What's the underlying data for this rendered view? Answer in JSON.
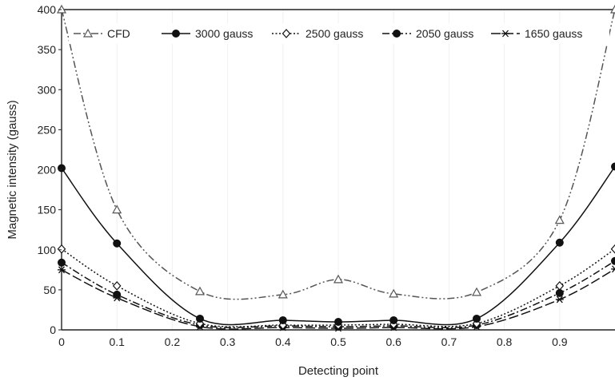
{
  "chart_data": {
    "type": "line",
    "xlabel": "Detecting point",
    "ylabel": "Magnetic intensity (gauss)",
    "xlim": [
      0,
      1
    ],
    "ylim": [
      0,
      400
    ],
    "xticks": [
      0,
      0.1,
      0.2,
      0.3,
      0.4,
      0.5,
      0.6,
      0.7,
      0.8,
      0.9
    ],
    "xtick_labels": [
      "0",
      "0.1",
      "0.2",
      "0.3",
      "0.4",
      "0.5",
      "0.6",
      "0.7",
      "0.8",
      "0.9"
    ],
    "yticks": [
      0,
      50,
      100,
      150,
      200,
      250,
      300,
      350,
      400
    ],
    "ytick_labels": [
      "0",
      "50",
      "100",
      "150",
      "200",
      "250",
      "300",
      "350",
      "400"
    ],
    "grid": "vertical light",
    "legend_position": "top",
    "series": [
      {
        "name": "CFD",
        "marker": "open-triangle",
        "line_style": "dash-dot-dot",
        "color": "#555555",
        "x": [
          0,
          0.1,
          0.25,
          0.4,
          0.5,
          0.6,
          0.75,
          0.9,
          1.0
        ],
        "y": [
          400,
          150,
          48,
          44,
          63,
          45,
          47,
          137,
          400
        ]
      },
      {
        "name": "3000 gauss",
        "marker": "filled-circle",
        "line_style": "solid",
        "color": "#111111",
        "x": [
          0,
          0.1,
          0.25,
          0.4,
          0.5,
          0.6,
          0.75,
          0.9,
          1.0
        ],
        "y": [
          202,
          108,
          14,
          12,
          10,
          12,
          14,
          109,
          204
        ]
      },
      {
        "name": "2500 gauss",
        "marker": "open-diamond",
        "line_style": "dotted",
        "color": "#111111",
        "x": [
          0,
          0.1,
          0.25,
          0.4,
          0.5,
          0.6,
          0.75,
          0.9,
          1.0
        ],
        "y": [
          101,
          55,
          8,
          6,
          6,
          7,
          8,
          55,
          101
        ]
      },
      {
        "name": "2050 gauss",
        "marker": "filled-circle",
        "line_style": "dash-dot",
        "color": "#111111",
        "x": [
          0,
          0.1,
          0.25,
          0.4,
          0.5,
          0.6,
          0.75,
          0.9,
          1.0
        ],
        "y": [
          84,
          44,
          6,
          5,
          4,
          5,
          6,
          46,
          86
        ]
      },
      {
        "name": "1650 gauss",
        "marker": "asterisk",
        "line_style": "long-dash",
        "color": "#111111",
        "x": [
          0,
          0.1,
          0.25,
          0.4,
          0.5,
          0.6,
          0.75,
          0.9,
          1.0
        ],
        "y": [
          75,
          40,
          4,
          3,
          2,
          3,
          4,
          38,
          76
        ]
      }
    ]
  }
}
